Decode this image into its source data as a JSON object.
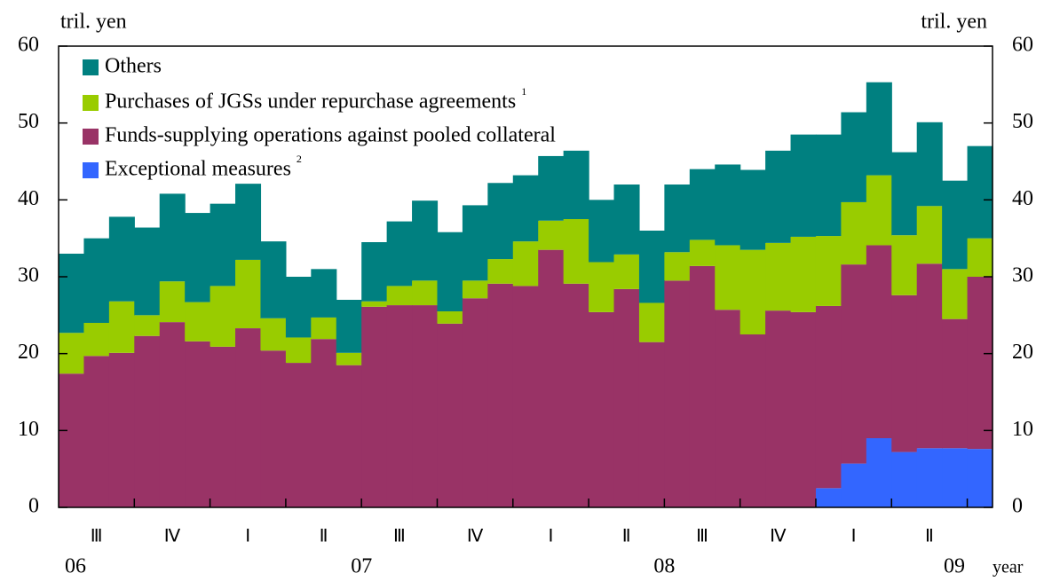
{
  "chart_data": {
    "type": "stacked_bar",
    "y_unit_left": "tril. yen",
    "y_unit_right": "tril. yen",
    "x_unit": "year",
    "categories": [
      null,
      null,
      null,
      null,
      null,
      null,
      null,
      null,
      null,
      null,
      null,
      null,
      null,
      null,
      null,
      null,
      null,
      null,
      null,
      null,
      null,
      null,
      null,
      null,
      null,
      null,
      null,
      null,
      null,
      null,
      null,
      null,
      null,
      null,
      null,
      null,
      null
    ],
    "quarter_labels": [
      "Ⅲ",
      "Ⅳ",
      "Ⅰ",
      "Ⅱ",
      "Ⅲ",
      "Ⅳ",
      "Ⅰ",
      "Ⅱ",
      "Ⅲ",
      "Ⅳ",
      "Ⅰ",
      "Ⅱ"
    ],
    "year_labels": [
      "06",
      "07",
      "08",
      "09"
    ],
    "series": [
      {
        "name": "Exceptional measures",
        "note": "2",
        "color": "#3366ff",
        "values": [
          0,
          0,
          0,
          0,
          0,
          0,
          0,
          0,
          0,
          0,
          0,
          0,
          0,
          0,
          0,
          0,
          0,
          0,
          0,
          0,
          0,
          0,
          0,
          0,
          0,
          0,
          0,
          0,
          0,
          0,
          2.5,
          5.7,
          9.0,
          7.2,
          7.7,
          7.7,
          7.6
        ]
      },
      {
        "name": "Funds-supplying operations against pooled collateral",
        "color": "#993366",
        "values": [
          17.4,
          19.7,
          20.1,
          22.3,
          24.1,
          21.6,
          20.9,
          23.3,
          20.4,
          18.8,
          21.9,
          18.5,
          26.1,
          26.3,
          26.3,
          23.9,
          27.2,
          29.1,
          28.8,
          33.5,
          29.1,
          25.4,
          28.4,
          21.5,
          29.5,
          31.4,
          25.7,
          22.5,
          25.6,
          25.4,
          23.7,
          25.9,
          25.1,
          20.4,
          24.0,
          16.8,
          22.4
        ]
      },
      {
        "name": "Purchases of JGSs under repurchase agreements",
        "note": "1",
        "color": "#99cc00",
        "values": [
          5.3,
          4.3,
          6.7,
          2.7,
          5.3,
          5.1,
          7.9,
          8.9,
          4.2,
          3.3,
          2.8,
          1.6,
          0.7,
          2.5,
          3.2,
          1.6,
          2.3,
          3.2,
          5.8,
          3.8,
          8.4,
          6.5,
          4.5,
          5.1,
          3.7,
          3.4,
          8.4,
          11.0,
          8.8,
          9.8,
          9.1,
          8.1,
          9.1,
          7.8,
          7.5,
          6.5,
          5.0
        ]
      },
      {
        "name": "Others",
        "color": "#008080",
        "values": [
          10.3,
          11.0,
          11.0,
          11.4,
          11.4,
          11.6,
          10.7,
          9.9,
          10.0,
          7.9,
          6.3,
          6.9,
          7.7,
          8.4,
          10.4,
          10.3,
          9.8,
          9.9,
          8.6,
          8.4,
          8.9,
          8.1,
          9.1,
          9.4,
          8.8,
          9.2,
          10.5,
          10.4,
          12.0,
          13.3,
          13.2,
          11.7,
          12.1,
          10.8,
          10.9,
          11.5,
          12.0
        ]
      }
    ],
    "ylim": [
      0,
      60
    ],
    "yticks": [
      0,
      10,
      20,
      30,
      40,
      50,
      60
    ],
    "y2lim": [
      0,
      60
    ],
    "y2ticks": [
      0,
      10,
      20,
      30,
      40,
      50,
      60
    ]
  }
}
